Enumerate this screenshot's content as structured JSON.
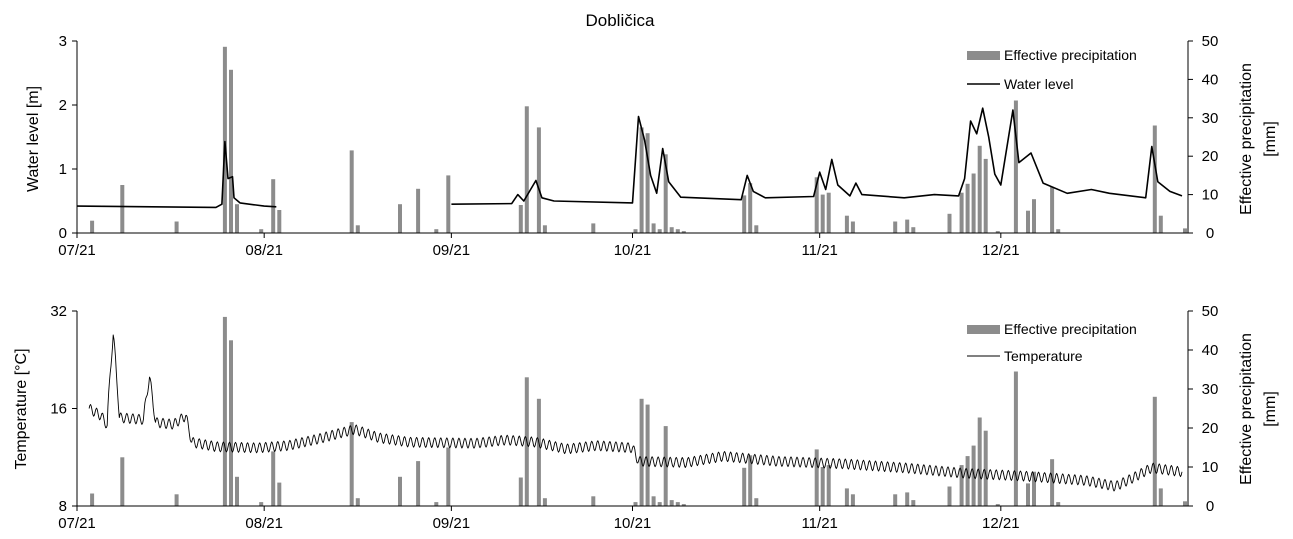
{
  "figure": {
    "title": "Dobličica",
    "colors": {
      "precipitation": "#8c8c8c",
      "line": "#000000",
      "axis": "#000000"
    }
  },
  "chart_data": [
    {
      "type": "bar+line",
      "title": "Dobličica",
      "x_ticks": [
        "07/21",
        "08/21",
        "09/21",
        "10/21",
        "11/21",
        "12/21"
      ],
      "x_start": "2021-07-01",
      "x_end": "2021-12-31",
      "ylabel_left": "Water level [m]",
      "ylabel_right": "Effective precipitation\n[mm]",
      "yticks_left": [
        0,
        1,
        2,
        3
      ],
      "ylim_left": [
        0,
        3
      ],
      "yticks_right": [
        0,
        10,
        20,
        30,
        40,
        50
      ],
      "ylim_right": [
        0,
        50
      ],
      "grid": false,
      "legend": {
        "placement": "top-right",
        "entries": [
          "Effective precipitation",
          "Water level"
        ]
      },
      "series": [
        {
          "name": "Effective precipitation",
          "kind": "bar",
          "axis": "right",
          "points": [
            [
              "2021-07-03",
              3.2
            ],
            [
              "2021-07-08",
              12.5
            ],
            [
              "2021-07-17",
              3
            ],
            [
              "2021-07-25",
              48.5
            ],
            [
              "2021-07-26",
              42.5
            ],
            [
              "2021-07-27",
              7.5
            ],
            [
              "2021-07-31",
              1
            ],
            [
              "2021-08-02",
              14
            ],
            [
              "2021-08-03",
              6
            ],
            [
              "2021-08-15",
              21.5
            ],
            [
              "2021-08-16",
              2
            ],
            [
              "2021-08-23",
              7.5
            ],
            [
              "2021-08-26",
              11.5
            ],
            [
              "2021-08-29",
              1
            ],
            [
              "2021-08-31",
              15
            ],
            [
              "2021-09-12",
              7.3
            ],
            [
              "2021-09-13",
              33
            ],
            [
              "2021-09-15",
              27.5
            ],
            [
              "2021-09-16",
              2
            ],
            [
              "2021-09-24",
              2.5
            ],
            [
              "2021-10-01",
              1
            ],
            [
              "2021-10-02",
              27.5
            ],
            [
              "2021-10-03",
              26
            ],
            [
              "2021-10-04",
              2.5
            ],
            [
              "2021-10-05",
              1
            ],
            [
              "2021-10-06",
              20.5
            ],
            [
              "2021-10-07",
              1.5
            ],
            [
              "2021-10-08",
              1
            ],
            [
              "2021-10-09",
              0.5
            ],
            [
              "2021-10-19",
              9.8
            ],
            [
              "2021-10-20",
              13
            ],
            [
              "2021-10-21",
              2
            ],
            [
              "2021-10-31",
              14.5
            ],
            [
              "2021-11-01",
              10
            ],
            [
              "2021-11-02",
              10.5
            ],
            [
              "2021-11-05",
              4.5
            ],
            [
              "2021-11-06",
              3
            ],
            [
              "2021-11-13",
              3
            ],
            [
              "2021-11-15",
              3.5
            ],
            [
              "2021-11-16",
              1.5
            ],
            [
              "2021-11-22",
              5
            ],
            [
              "2021-11-24",
              10.5
            ],
            [
              "2021-11-25",
              12.8
            ],
            [
              "2021-11-26",
              15.5
            ],
            [
              "2021-11-27",
              22.7
            ],
            [
              "2021-11-28",
              19.3
            ],
            [
              "2021-11-30",
              0.5
            ],
            [
              "2021-12-03",
              34.5
            ],
            [
              "2021-12-05",
              5.8
            ],
            [
              "2021-12-06",
              8.8
            ],
            [
              "2021-12-09",
              12
            ],
            [
              "2021-12-10",
              1
            ],
            [
              "2021-12-26",
              28
            ],
            [
              "2021-12-27",
              4.5
            ],
            [
              "2021-12-31",
              1.2
            ]
          ]
        },
        {
          "name": "Water level",
          "kind": "line",
          "axis": "left",
          "segments": [
            [
              [
                "2021-07-01",
                0.42
              ],
              [
                "2021-07-24",
                0.4
              ],
              [
                "2021-07-25",
                0.45
              ],
              [
                "2021-07-25T12",
                1.43
              ],
              [
                "2021-07-26",
                0.85
              ],
              [
                "2021-07-26T18",
                0.88
              ],
              [
                "2021-07-27",
                0.55
              ],
              [
                "2021-07-28",
                0.47
              ],
              [
                "2021-08-01",
                0.42
              ],
              [
                "2021-08-03",
                0.41
              ]
            ],
            [
              [
                "2021-09-01",
                0.45
              ],
              [
                "2021-09-11",
                0.46
              ],
              [
                "2021-09-12",
                0.6
              ],
              [
                "2021-09-13",
                0.5
              ],
              [
                "2021-09-15",
                0.82
              ],
              [
                "2021-09-16",
                0.55
              ],
              [
                "2021-09-18",
                0.5
              ],
              [
                "2021-10-01",
                0.47
              ],
              [
                "2021-10-02",
                1.82
              ],
              [
                "2021-10-03",
                1.45
              ],
              [
                "2021-10-04",
                0.9
              ],
              [
                "2021-10-05",
                0.62
              ],
              [
                "2021-10-06",
                1.32
              ],
              [
                "2021-10-07",
                0.8
              ],
              [
                "2021-10-09",
                0.56
              ],
              [
                "2021-10-19",
                0.52
              ],
              [
                "2021-10-20",
                0.9
              ],
              [
                "2021-10-21",
                0.65
              ],
              [
                "2021-10-23",
                0.55
              ],
              [
                "2021-10-31",
                0.57
              ],
              [
                "2021-11-01",
                0.95
              ],
              [
                "2021-11-02",
                0.68
              ],
              [
                "2021-11-03",
                1.15
              ],
              [
                "2021-11-04",
                0.75
              ],
              [
                "2021-11-06",
                0.58
              ],
              [
                "2021-11-07",
                0.78
              ],
              [
                "2021-11-08",
                0.6
              ],
              [
                "2021-11-15",
                0.55
              ],
              [
                "2021-11-20",
                0.6
              ],
              [
                "2021-11-24",
                0.58
              ],
              [
                "2021-11-25",
                0.85
              ],
              [
                "2021-11-26",
                1.75
              ],
              [
                "2021-11-27",
                1.55
              ],
              [
                "2021-11-28",
                1.95
              ],
              [
                "2021-11-29",
                1.5
              ],
              [
                "2021-11-30",
                0.92
              ],
              [
                "2021-12-01",
                0.75
              ],
              [
                "2021-12-03",
                1.92
              ],
              [
                "2021-12-04",
                1.1
              ],
              [
                "2021-12-06",
                1.25
              ],
              [
                "2021-12-08",
                0.78
              ],
              [
                "2021-12-12",
                0.62
              ],
              [
                "2021-12-16",
                0.68
              ],
              [
                "2021-12-19",
                0.62
              ],
              [
                "2021-12-25",
                0.55
              ],
              [
                "2021-12-26",
                1.35
              ],
              [
                "2021-12-27",
                0.8
              ],
              [
                "2021-12-29",
                0.65
              ],
              [
                "2021-12-31",
                0.58
              ]
            ]
          ]
        }
      ]
    },
    {
      "type": "bar+line",
      "x_ticks": [
        "07/21",
        "08/21",
        "09/21",
        "10/21",
        "11/21",
        "12/21"
      ],
      "x_start": "2021-07-01",
      "x_end": "2021-12-31",
      "ylabel_left": "Temperature [°C]",
      "ylabel_right": "Effective precipitation\n[mm]",
      "yticks_left": [
        8,
        16,
        32
      ],
      "ylim_left": [
        8,
        32
      ],
      "yscale_left": "log",
      "yticks_right": [
        0,
        10,
        20,
        30,
        40,
        50
      ],
      "ylim_right": [
        0,
        50
      ],
      "grid": false,
      "legend": {
        "placement": "top-right",
        "entries": [
          "Effective precipitation",
          "Temperature"
        ]
      },
      "series": [
        {
          "name": "Effective precipitation",
          "kind": "bar",
          "axis": "right",
          "same_as_panel": 0
        },
        {
          "name": "Temperature",
          "kind": "line",
          "axis": "left",
          "diurnal_amplitude_pct": 3.5,
          "points": [
            [
              "2021-07-03",
              16
            ],
            [
              "2021-07-05",
              15.2
            ],
            [
              "2021-07-06",
              14.2
            ],
            [
              "2021-07-07",
              27
            ],
            [
              "2021-07-08",
              15
            ],
            [
              "2021-07-12",
              14.8
            ],
            [
              "2021-07-13",
              20
            ],
            [
              "2021-07-14",
              14.5
            ],
            [
              "2021-07-17",
              14.3
            ],
            [
              "2021-07-19",
              15.2
            ],
            [
              "2021-07-20",
              12.6
            ],
            [
              "2021-07-24",
              12.2
            ],
            [
              "2021-07-31",
              12.1
            ],
            [
              "2021-08-05",
              12.3
            ],
            [
              "2021-08-10",
              12.9
            ],
            [
              "2021-08-16",
              13.8
            ],
            [
              "2021-08-20",
              13
            ],
            [
              "2021-08-25",
              12.6
            ],
            [
              "2021-09-05",
              12.5
            ],
            [
              "2021-09-10",
              12.8
            ],
            [
              "2021-09-15",
              12.6
            ],
            [
              "2021-09-20",
              12
            ],
            [
              "2021-09-25",
              12.3
            ],
            [
              "2021-10-01",
              12.1
            ],
            [
              "2021-10-02",
              11
            ],
            [
              "2021-10-10",
              10.9
            ],
            [
              "2021-10-16",
              11.4
            ],
            [
              "2021-10-25",
              11
            ],
            [
              "2021-11-05",
              10.8
            ],
            [
              "2021-11-15",
              10.5
            ],
            [
              "2021-11-25",
              10.1
            ],
            [
              "2021-12-05",
              9.9
            ],
            [
              "2021-12-15",
              9.6
            ],
            [
              "2021-12-20",
              9.2
            ],
            [
              "2021-12-23",
              9.8
            ],
            [
              "2021-12-26",
              10.5
            ],
            [
              "2021-12-31",
              10.2
            ]
          ]
        }
      ]
    }
  ]
}
